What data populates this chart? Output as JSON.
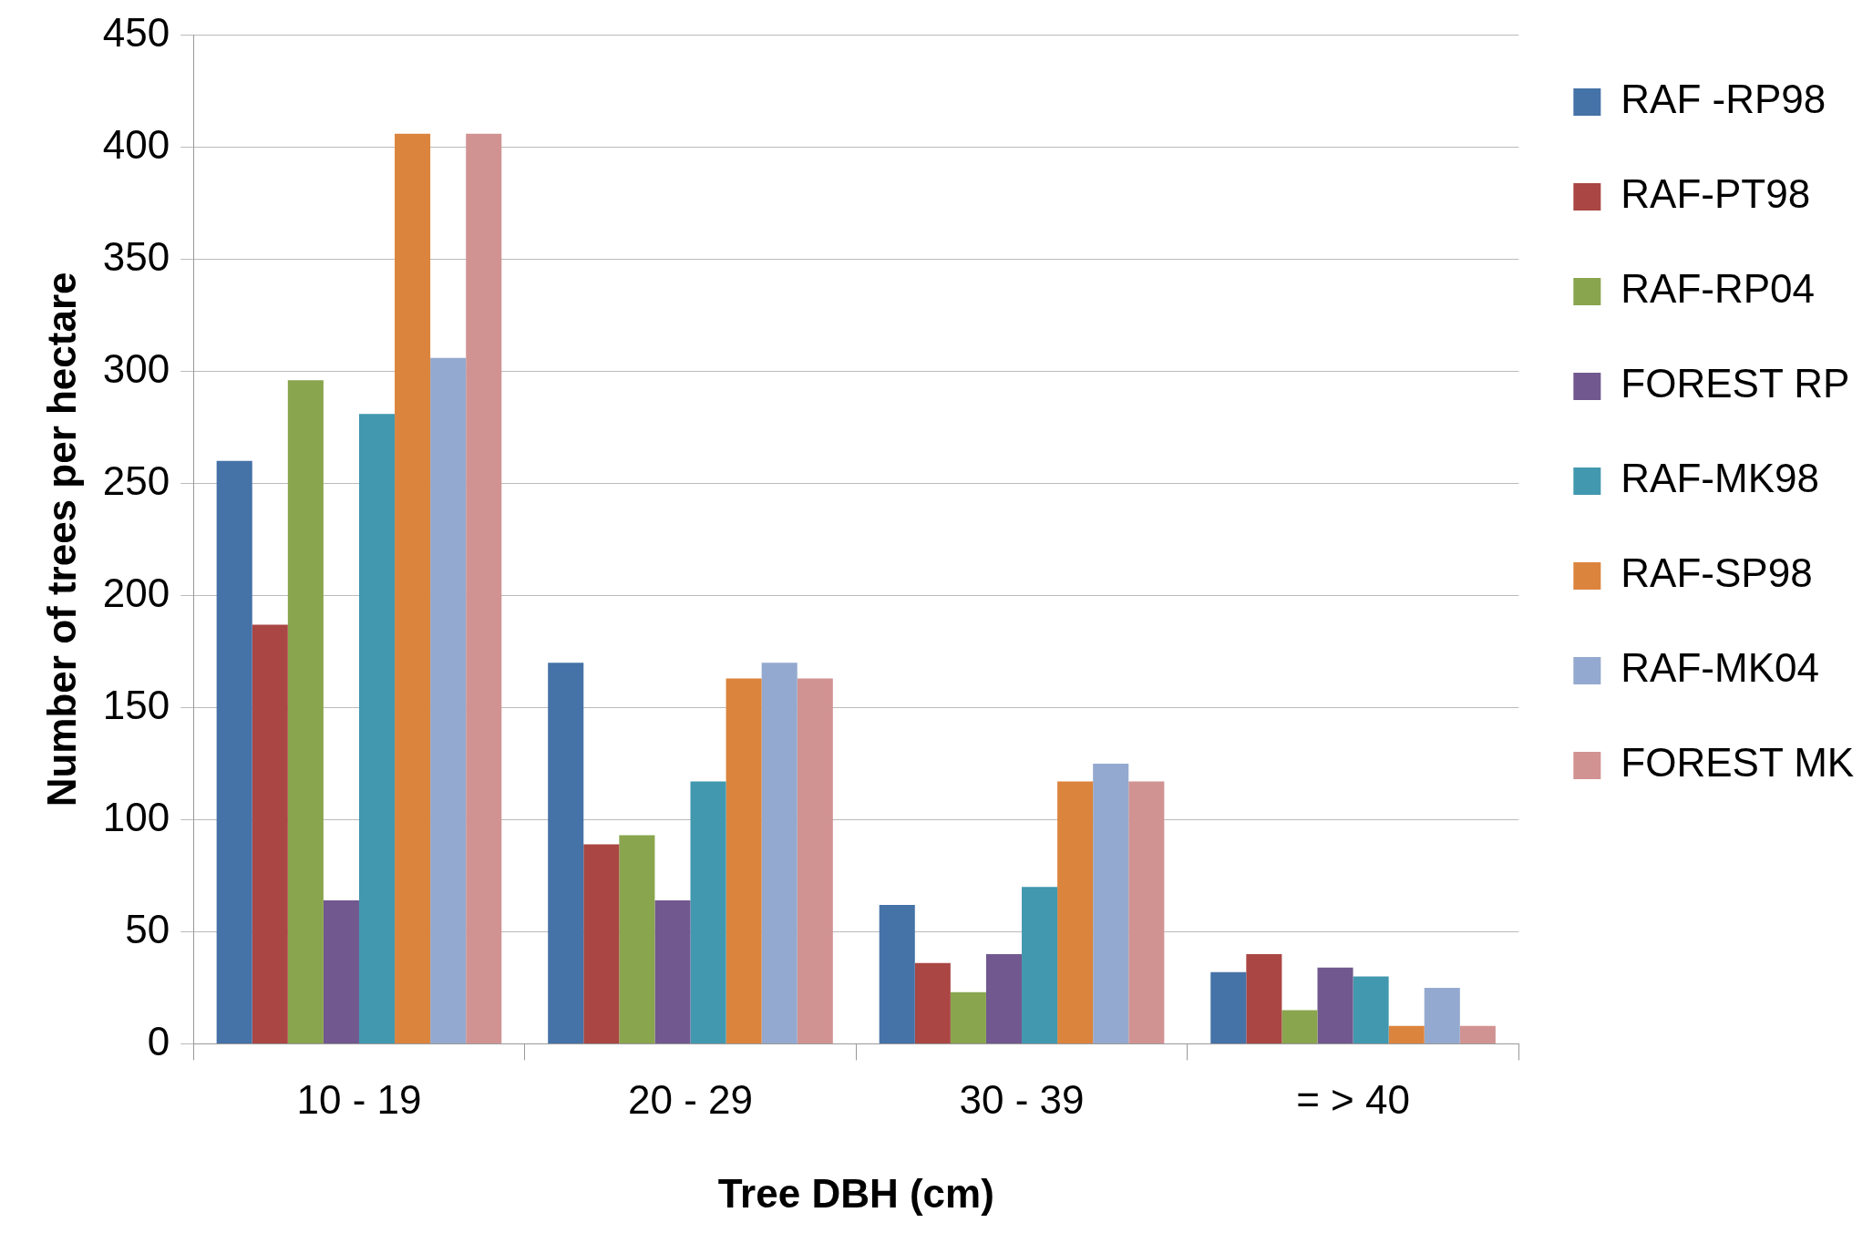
{
  "chart_data": {
    "type": "bar",
    "xlabel": "Tree DBH (cm)",
    "ylabel": "Number of trees per hectare",
    "categories": [
      "10 - 19",
      "20 - 29",
      "30 - 39",
      "= > 40"
    ],
    "series": [
      {
        "name": "RAF -RP98",
        "color": "#4572a7",
        "values": [
          260,
          170,
          62,
          32
        ]
      },
      {
        "name": "RAF-PT98",
        "color": "#aa4643",
        "values": [
          187,
          89,
          36,
          40
        ]
      },
      {
        "name": "RAF-RP04",
        "color": "#89a54e",
        "values": [
          296,
          93,
          23,
          15
        ]
      },
      {
        "name": "FOREST RP",
        "color": "#71588f",
        "values": [
          64,
          64,
          40,
          34
        ]
      },
      {
        "name": "RAF-MK98",
        "color": "#4198af",
        "values": [
          281,
          117,
          70,
          30
        ]
      },
      {
        "name": "RAF-SP98",
        "color": "#db843d",
        "values": [
          406,
          163,
          117,
          8
        ]
      },
      {
        "name": "RAF-MK04",
        "color": "#93a9cf",
        "values": [
          306,
          170,
          125,
          25
        ]
      },
      {
        "name": "FOREST MK",
        "color": "#d19392",
        "values": [
          406,
          163,
          117,
          8
        ]
      }
    ],
    "ylim": [
      0,
      450
    ],
    "yticks": [
      0,
      50,
      100,
      150,
      200,
      250,
      300,
      350,
      400,
      450
    ],
    "grid": "y",
    "legend": "right"
  }
}
